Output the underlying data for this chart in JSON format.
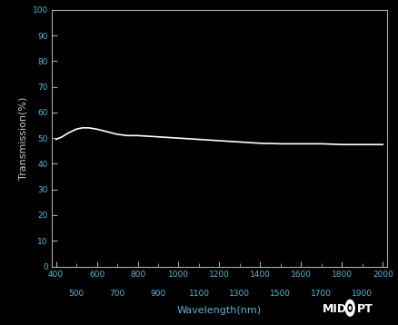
{
  "background_color": "#000000",
  "plot_bg_color": "#000000",
  "line_color": "#ffffff",
  "axis_color": "#aaaaaa",
  "tick_label_color": "#4db8d4",
  "xlabel": "Wavelength(nm)",
  "ylabel": "Transmission(%)",
  "xlabel_color": "#4db8d4",
  "ylabel_color": "#c8c8c8",
  "xlim": [
    380,
    2020
  ],
  "ylim": [
    0,
    100
  ],
  "xticks_major": [
    400,
    600,
    800,
    1000,
    1200,
    1400,
    1600,
    1800,
    2000
  ],
  "xticks_minor": [
    500,
    700,
    900,
    1100,
    1300,
    1500,
    1700,
    1900
  ],
  "yticks": [
    0,
    10,
    20,
    30,
    40,
    50,
    60,
    70,
    80,
    90,
    100
  ],
  "line_data_x": [
    400,
    430,
    460,
    500,
    530,
    560,
    600,
    650,
    700,
    750,
    800,
    900,
    1000,
    1100,
    1200,
    1300,
    1400,
    1500,
    1600,
    1700,
    1800,
    1850,
    1900,
    1950,
    2000
  ],
  "line_data_y": [
    49.5,
    50.5,
    52.0,
    53.5,
    54.0,
    54.0,
    53.5,
    52.5,
    51.5,
    51.0,
    51.0,
    50.5,
    50.0,
    49.5,
    49.0,
    48.5,
    48.0,
    47.8,
    47.8,
    47.8,
    47.5,
    47.5,
    47.5,
    47.5,
    47.5
  ],
  "line_width": 1.2,
  "figsize": [
    4.39,
    3.58
  ],
  "dpi": 100
}
